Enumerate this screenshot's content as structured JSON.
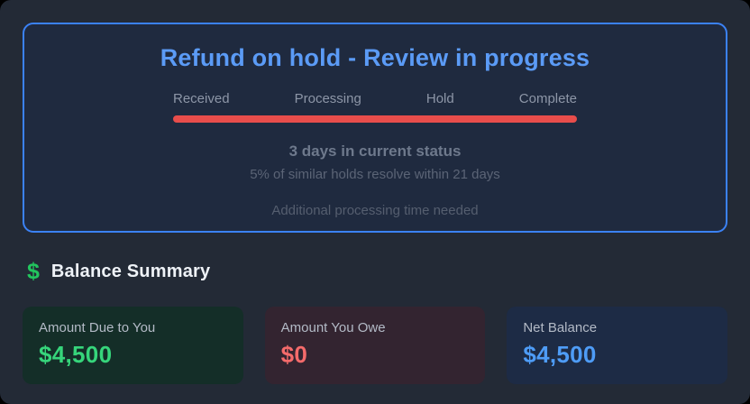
{
  "status_card": {
    "title": "Refund on hold - Review in progress",
    "title_color": "#5b9bf6",
    "border_color": "#3b82f6",
    "steps": [
      "Received",
      "Processing",
      "Hold",
      "Complete"
    ],
    "progress_bar_color": "#e84d4b",
    "status_primary": "3 days in current status",
    "status_secondary": "5% of similar holds resolve within 21 days",
    "status_note": "Additional processing time needed"
  },
  "balance_summary": {
    "icon_glyph": "$",
    "icon_color": "#22c55e",
    "title": "Balance Summary",
    "cards": [
      {
        "label": "Amount Due to You",
        "value": "$4,500",
        "value_color": "#36d57b",
        "bg_color": "#142e28"
      },
      {
        "label": "Amount You Owe",
        "value": "$0",
        "value_color": "#f56b6b",
        "bg_color": "#332430"
      },
      {
        "label": "Net Balance",
        "value": "$4,500",
        "value_color": "#4e9cf6",
        "bg_color": "#1d2b45"
      }
    ]
  }
}
